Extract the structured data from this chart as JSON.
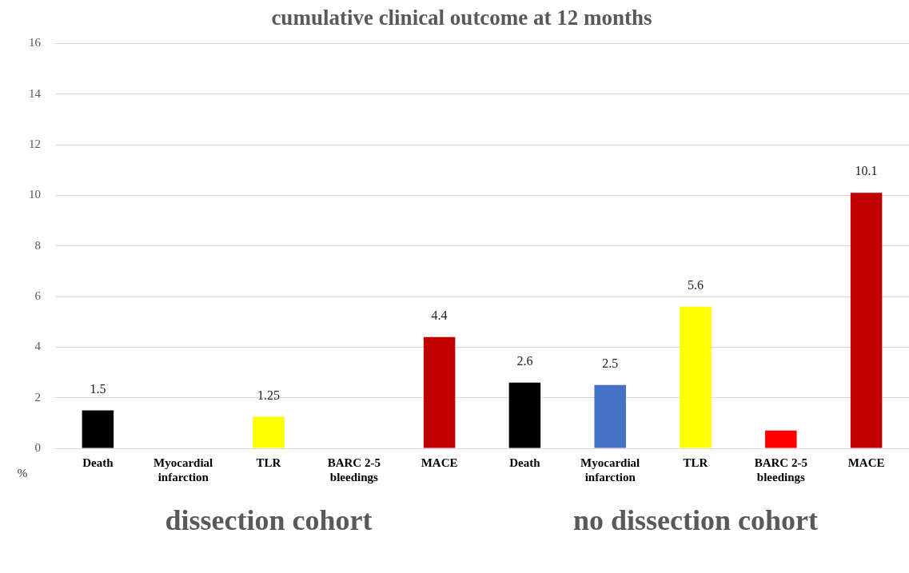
{
  "chart_data": {
    "type": "bar",
    "title": "cumulative clinical outcome at 12 months",
    "ylabel": "%",
    "categories": [
      "Death",
      "Myocardial infarction",
      "TLR",
      "BARC 2-5 bleedings",
      "MACE",
      "Death",
      "Myocardial infarction",
      "TLR",
      "BARC 2-5 bleedings",
      "MACE"
    ],
    "values": [
      1.5,
      0,
      1.25,
      0,
      4.4,
      2.6,
      2.5,
      5.6,
      0.7,
      10.1
    ],
    "colors": [
      "#000000",
      "#4472c4",
      "#ffff00",
      "#ff0000",
      "#c00000",
      "#000000",
      "#4472c4",
      "#ffff00",
      "#ff0000",
      "#c00000"
    ],
    "value_labels": [
      "1.5",
      null,
      "1.25",
      null,
      "4.4",
      "2.6",
      "2.5",
      "5.6",
      null,
      "10.1"
    ],
    "ylim": [
      0,
      16
    ],
    "yticks": [
      0,
      2,
      4,
      6,
      8,
      10,
      12,
      14,
      16
    ],
    "grid": "y",
    "legend": false,
    "annotations": [
      "dissection cohort",
      "no dissection cohort"
    ]
  }
}
